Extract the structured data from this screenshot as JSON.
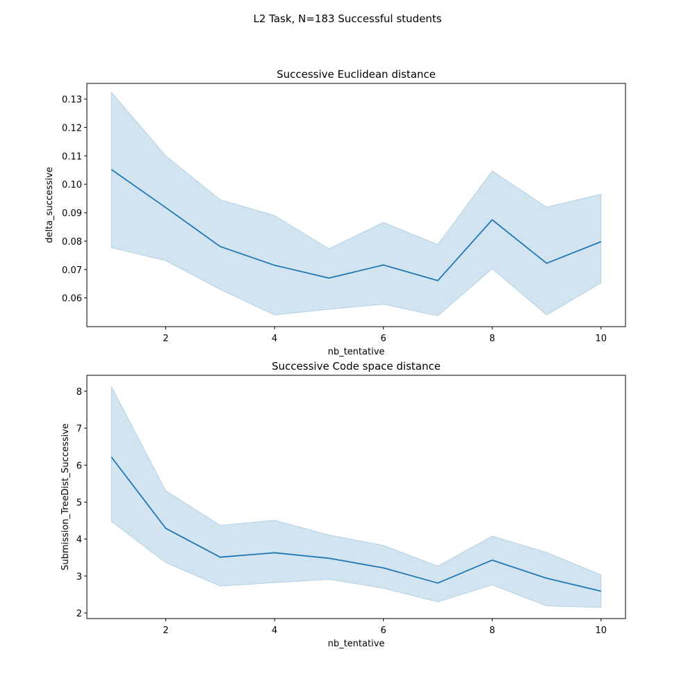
{
  "suptitle": "L2 Task, N=183 Successful students",
  "chart_data": [
    {
      "type": "line",
      "title": "Successive Euclidean distance",
      "xlabel": "nb_tentative",
      "ylabel": "delta_successive",
      "x": [
        1,
        2,
        3,
        4,
        5,
        6,
        7,
        8,
        9,
        10
      ],
      "xlim": [
        0.55,
        10.45
      ],
      "ylim": [
        0.0499,
        0.1355
      ],
      "xticks": [
        2,
        4,
        6,
        8,
        10
      ],
      "xtick_labels": [
        "2",
        "4",
        "6",
        "8",
        "10"
      ],
      "yticks": [
        0.06,
        0.07,
        0.08,
        0.09,
        0.1,
        0.11,
        0.12,
        0.13
      ],
      "ytick_labels": [
        "0.06",
        "0.07",
        "0.08",
        "0.09",
        "0.10",
        "0.11",
        "0.12",
        "0.13"
      ],
      "series": [
        {
          "values": [
            0.1052,
            0.0918,
            0.0781,
            0.0715,
            0.067,
            0.0716,
            0.0661,
            0.0875,
            0.0722,
            0.0798
          ],
          "ci_low": [
            0.0777,
            0.0731,
            0.063,
            0.054,
            0.056,
            0.0578,
            0.0537,
            0.0703,
            0.054,
            0.0653
          ],
          "ci_high": [
            0.1324,
            0.11,
            0.0946,
            0.089,
            0.0773,
            0.0866,
            0.0788,
            0.1047,
            0.092,
            0.0965
          ]
        }
      ],
      "color": "#1f77b4",
      "grid": false
    },
    {
      "type": "line",
      "title": "Successive Code space distance",
      "xlabel": "nb_tentative",
      "ylabel": "Submission_TreeDist_Successive",
      "x": [
        1,
        2,
        3,
        4,
        5,
        6,
        7,
        8,
        9,
        10
      ],
      "xlim": [
        0.55,
        10.45
      ],
      "ylim": [
        1.85,
        8.43
      ],
      "xticks": [
        2,
        4,
        6,
        8,
        10
      ],
      "xtick_labels": [
        "2",
        "4",
        "6",
        "8",
        "10"
      ],
      "yticks": [
        2,
        3,
        4,
        5,
        6,
        7,
        8
      ],
      "ytick_labels": [
        "2",
        "3",
        "4",
        "5",
        "6",
        "7",
        "8"
      ],
      "series": [
        {
          "values": [
            6.22,
            4.29,
            3.51,
            3.63,
            3.48,
            3.22,
            2.81,
            3.43,
            2.94,
            2.59
          ],
          "ci_low": [
            4.48,
            3.36,
            2.73,
            2.82,
            2.91,
            2.67,
            2.3,
            2.76,
            2.19,
            2.15
          ],
          "ci_high": [
            8.13,
            5.31,
            4.37,
            4.51,
            4.11,
            3.83,
            3.27,
            4.08,
            3.64,
            3.03
          ]
        }
      ],
      "color": "#1f77b4",
      "grid": false
    }
  ]
}
